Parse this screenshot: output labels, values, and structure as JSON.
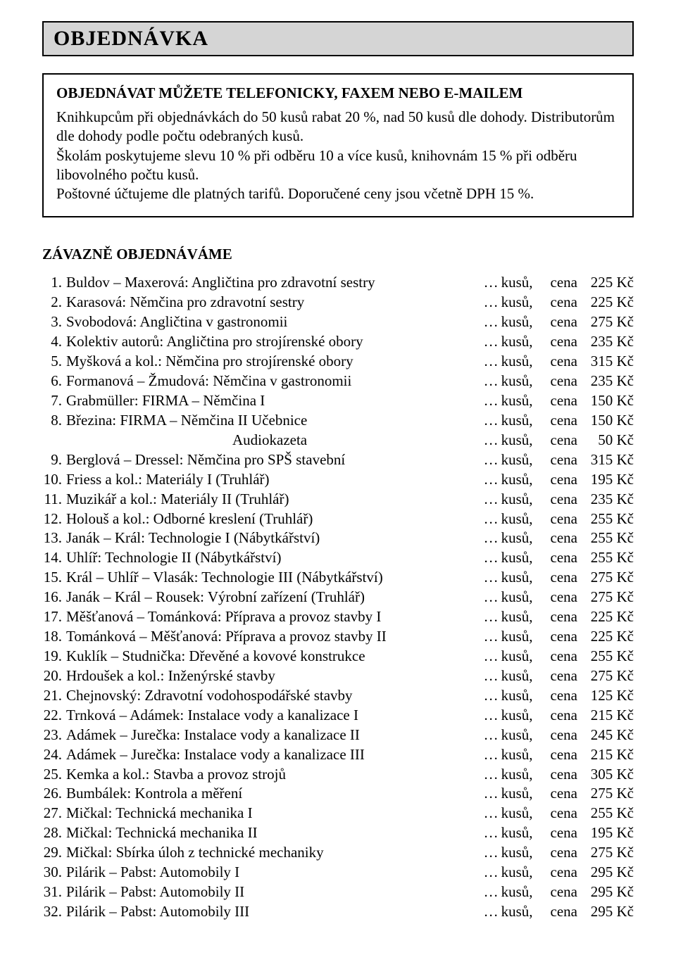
{
  "header": {
    "title": "OBJEDNÁVKA"
  },
  "info": {
    "subtitle": "OBJEDNÁVAT MŮŽETE TELEFONICKY, FAXEM NEBO E-MAILEM",
    "p1": "Knihkupcům při objednávkách do 50 kusů rabat 20 %, nad 50 kusů dle dohody. Distributorům dle dohody podle počtu odebraných kusů.",
    "p2": "Školám poskytujeme slevu 10 % při odběru 10 a více kusů, knihovnám 15 % při odběru libovolného počtu kusů.",
    "p3": "Poštovné účtujeme dle platných tarifů. Doporučené ceny jsou včetně DPH 15 %."
  },
  "section_heading": "ZÁVAZNĚ  OBJEDNÁVÁME",
  "labels": {
    "dots": "…",
    "kusu": "kusů,",
    "cena": "cena",
    "currency": "Kč"
  },
  "items": [
    {
      "n": "1.",
      "title": "Buldov – Maxerová: Angličtina pro zdravotní sestry",
      "price": "225"
    },
    {
      "n": "2.",
      "title": "Karasová: Němčina pro zdravotní sestry",
      "price": "225"
    },
    {
      "n": "3.",
      "title": "Svobodová: Angličtina v gastronomii",
      "price": "275"
    },
    {
      "n": "4.",
      "title": "Kolektiv autorů: Angličtina pro strojírenské obory",
      "price": "235"
    },
    {
      "n": "5.",
      "title": "Myšková a kol.: Němčina pro strojírenské obory",
      "price": "315"
    },
    {
      "n": "6.",
      "title": "Formanová – Žmudová: Němčina v gastronomii",
      "price": "235"
    },
    {
      "n": "7.",
      "title": "Grabmüller: FIRMA – Němčina  I",
      "price": "150"
    },
    {
      "n": "8.",
      "title": "Březina: FIRMA – Němčina  II  Učebnice",
      "price": "150"
    },
    {
      "n": "",
      "title": "Audiokazeta",
      "price": "50",
      "sub": true
    },
    {
      "n": "9.",
      "title": "Berglová – Dressel: Němčina pro SPŠ stavební",
      "price": "315"
    },
    {
      "n": "10.",
      "title": "Friess a kol.: Materiály I  (Truhlář)",
      "price": "195"
    },
    {
      "n": "11.",
      "title": "Muzikář a kol.: Materiály II  (Truhlář)",
      "price": "235"
    },
    {
      "n": "12.",
      "title": "Holouš a kol.: Odborné kreslení (Truhlář)",
      "price": "255"
    },
    {
      "n": "13.",
      "title": "Janák – Král: Technologie  I  (Nábytkářství)",
      "price": "255"
    },
    {
      "n": "14.",
      "title": "Uhlíř: Technologie  II  (Nábytkářství)",
      "price": "255"
    },
    {
      "n": "15.",
      "title": "Král – Uhlíř – Vlasák: Technologie  III  (Nábytkářství)",
      "price": "275"
    },
    {
      "n": "16.",
      "title": "Janák – Král – Rousek: Výrobní zařízení  (Truhlář)",
      "price": "275"
    },
    {
      "n": "17.",
      "title": "Měšťanová – Tománková: Příprava a provoz stavby I",
      "price": "225"
    },
    {
      "n": "18.",
      "title": "Tománková – Měšťanová: Příprava a provoz stavby II",
      "price": "225"
    },
    {
      "n": "19.",
      "title": "Kuklík – Studnička: Dřevěné a kovové konstrukce",
      "price": "255"
    },
    {
      "n": "20.",
      "title": "Hrdoušek a kol.: Inženýrské stavby",
      "price": "275"
    },
    {
      "n": "21.",
      "title": "Chejnovský: Zdravotní vodohospodářské stavby",
      "price": "125"
    },
    {
      "n": "22.",
      "title": "Trnková – Adámek: Instalace vody a kanalizace  I",
      "price": "215"
    },
    {
      "n": "23.",
      "title": "Adámek – Jurečka: Instalace vody a kanalizace  II",
      "price": "245"
    },
    {
      "n": "24.",
      "title": "Adámek – Jurečka: Instalace vody a kanalizace  III",
      "price": "215"
    },
    {
      "n": "25.",
      "title": "Kemka a kol.: Stavba a provoz strojů",
      "price": "305"
    },
    {
      "n": "26.",
      "title": "Bumbálek: Kontrola a měření",
      "price": "275"
    },
    {
      "n": "27.",
      "title": "Mičkal: Technická mechanika  I",
      "price": "255"
    },
    {
      "n": "28.",
      "title": "Mičkal: Technická mechanika  II",
      "price": "195"
    },
    {
      "n": "29.",
      "title": "Mičkal: Sbírka úloh z technické mechaniky",
      "price": "275"
    },
    {
      "n": "30.",
      "title": "Pilárik – Pabst: Automobily  I",
      "price": "295"
    },
    {
      "n": "31.",
      "title": "Pilárik – Pabst: Automobily  II",
      "price": "295"
    },
    {
      "n": "32.",
      "title": "Pilárik – Pabst: Automobily  III",
      "price": "295"
    }
  ]
}
